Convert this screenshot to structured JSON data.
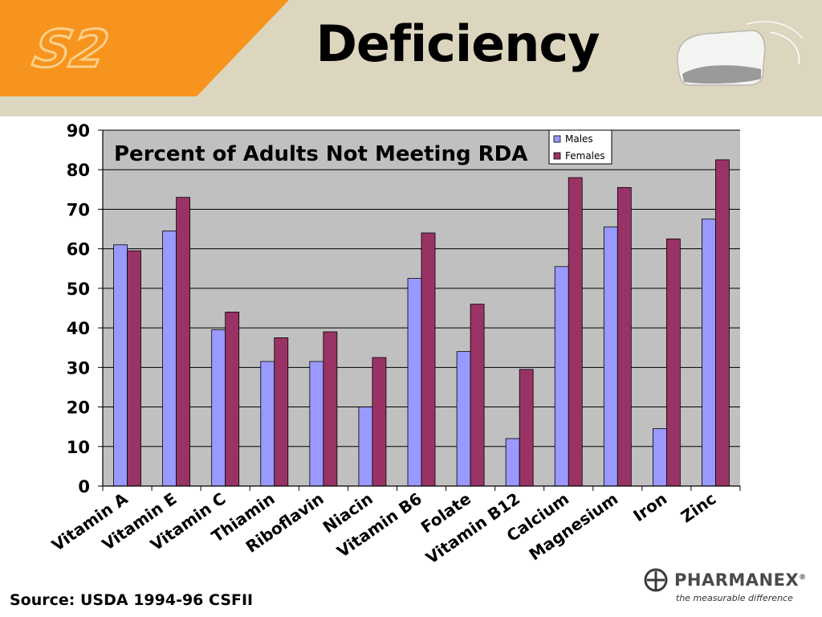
{
  "header": {
    "logo_text": "S2",
    "title": "Deficiency",
    "accent_color": "#F7941D"
  },
  "footer": {
    "source": "Source: USDA 1994-96 CSFII",
    "brand_name": "PHARMANEX",
    "brand_mark": "®",
    "brand_tagline": "the measurable difference"
  },
  "chart_data": {
    "type": "bar",
    "title": "Percent of Adults Not Meeting RDA",
    "xlabel": "",
    "ylabel": "",
    "ylim": [
      0,
      90
    ],
    "yticks": [
      0,
      10,
      20,
      30,
      40,
      50,
      60,
      70,
      80,
      90
    ],
    "grid": true,
    "legend": "top-right",
    "categories": [
      "Vitamin A",
      "Vitamin E",
      "Vitamin C",
      "Thiamin",
      "Riboflavin",
      "Niacin",
      "Vitamin B6",
      "Folate",
      "Vitamin B12",
      "Calcium",
      "Magnesium",
      "Iron",
      "Zinc"
    ],
    "series": [
      {
        "name": "Males",
        "color": "#9999FF",
        "values": [
          61,
          64.5,
          39.5,
          31.5,
          31.5,
          20,
          52.5,
          34,
          12,
          55.5,
          65.5,
          14.5,
          67.5
        ]
      },
      {
        "name": "Females",
        "color": "#993366",
        "values": [
          59.5,
          73,
          44,
          37.5,
          39,
          32.5,
          64,
          46,
          29.5,
          78,
          75.5,
          62.5,
          82.5
        ]
      }
    ]
  }
}
